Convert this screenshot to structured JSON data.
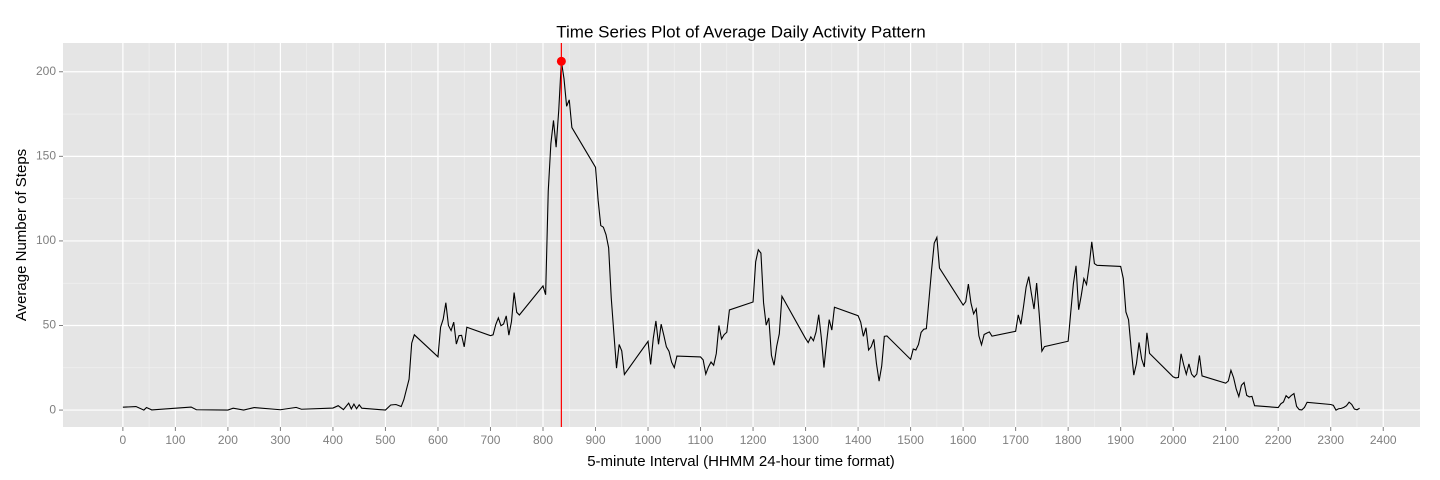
{
  "chart_data": {
    "type": "line",
    "title": "Time Series Plot of Average Daily Activity Pattern",
    "x_label": "5-minute Interval (HHMM 24-hour time format)",
    "y_label": "Average Number of Steps",
    "xlim": [
      -114,
      2470
    ],
    "ylim": [
      -10,
      217
    ],
    "xticks": [
      0,
      100,
      200,
      300,
      400,
      500,
      600,
      700,
      800,
      900,
      1000,
      1100,
      1200,
      1300,
      1400,
      1500,
      1600,
      1700,
      1800,
      1900,
      2000,
      2100,
      2200,
      2300,
      2400
    ],
    "yticks": [
      0,
      50,
      100,
      150,
      200
    ],
    "grid": true,
    "x": [
      0,
      25,
      40,
      45,
      55,
      130,
      140,
      200,
      210,
      230,
      250,
      300,
      330,
      340,
      400,
      410,
      420,
      430,
      435,
      440,
      445,
      450,
      455,
      500,
      510,
      520,
      530,
      535,
      545,
      550,
      555,
      600,
      605,
      610,
      615,
      620,
      625,
      630,
      635,
      640,
      645,
      650,
      655,
      700,
      705,
      710,
      715,
      720,
      725,
      730,
      735,
      740,
      745,
      750,
      755,
      800,
      805,
      810,
      815,
      820,
      825,
      830,
      835,
      840,
      845,
      850,
      855,
      900,
      905,
      910,
      915,
      920,
      925,
      930,
      935,
      940,
      945,
      950,
      955,
      1000,
      1005,
      1010,
      1015,
      1020,
      1025,
      1030,
      1035,
      1040,
      1045,
      1050,
      1055,
      1100,
      1105,
      1110,
      1115,
      1120,
      1125,
      1130,
      1135,
      1140,
      1145,
      1150,
      1155,
      1200,
      1205,
      1210,
      1215,
      1220,
      1225,
      1230,
      1235,
      1240,
      1245,
      1250,
      1255,
      1300,
      1305,
      1310,
      1315,
      1320,
      1325,
      1330,
      1335,
      1340,
      1345,
      1350,
      1355,
      1400,
      1405,
      1410,
      1415,
      1420,
      1425,
      1430,
      1435,
      1440,
      1445,
      1450,
      1455,
      1500,
      1505,
      1510,
      1515,
      1520,
      1525,
      1530,
      1535,
      1540,
      1545,
      1550,
      1555,
      1600,
      1605,
      1610,
      1615,
      1620,
      1625,
      1630,
      1635,
      1640,
      1645,
      1650,
      1655,
      1700,
      1705,
      1710,
      1715,
      1720,
      1725,
      1730,
      1735,
      1740,
      1745,
      1750,
      1755,
      1800,
      1805,
      1810,
      1815,
      1820,
      1825,
      1830,
      1835,
      1840,
      1845,
      1850,
      1855,
      1900,
      1905,
      1910,
      1915,
      1920,
      1925,
      1930,
      1935,
      1940,
      1945,
      1950,
      1955,
      2000,
      2005,
      2010,
      2015,
      2020,
      2025,
      2030,
      2035,
      2040,
      2045,
      2050,
      2055,
      2100,
      2105,
      2110,
      2115,
      2120,
      2125,
      2130,
      2135,
      2140,
      2145,
      2150,
      2155,
      2200,
      2205,
      2210,
      2215,
      2220,
      2225,
      2230,
      2235,
      2240,
      2245,
      2250,
      2255,
      2300,
      2305,
      2310,
      2315,
      2320,
      2325,
      2330,
      2335,
      2340,
      2345,
      2350,
      2355
    ],
    "series": [
      {
        "color": "#000000",
        "values": [
          1.7,
          2.1,
          0,
          1.5,
          0.1,
          1.8,
          0.2,
          0,
          1.1,
          0,
          1.5,
          0.2,
          1.6,
          0.5,
          1.2,
          2.6,
          0.3,
          4.1,
          0.7,
          3.5,
          0.8,
          3.1,
          1.1,
          0,
          3.0,
          3.3,
          2.1,
          6.1,
          18.3,
          39.5,
          44.5,
          31.5,
          49,
          53.8,
          63.5,
          50,
          47,
          52,
          39,
          44,
          44.2,
          37.4,
          49,
          44,
          44.5,
          50.5,
          54.5,
          49.9,
          50.9,
          55.7,
          44.3,
          52.3,
          69.5,
          57.8,
          56.2,
          73.4,
          68.2,
          129.4,
          157.5,
          171.2,
          155.4,
          177.3,
          206.2,
          195.9,
          179.6,
          183.4,
          167,
          143.5,
          124,
          109.1,
          108.1,
          103.7,
          95.97,
          66.2,
          45.2,
          24.8,
          38.8,
          34.98,
          21.06,
          40.6,
          26.98,
          42.4,
          52.7,
          38.9,
          50.8,
          44.3,
          37.4,
          34.7,
          28.3,
          25.1,
          31.9,
          31.4,
          29.7,
          21.3,
          25.5,
          28.4,
          26.5,
          33.4,
          49.98,
          42,
          44.6,
          46,
          59.2,
          63.9,
          87.7,
          94.8,
          92.8,
          63.4,
          50.2,
          54.5,
          32.4,
          26.5,
          37.7,
          45.1,
          67.3,
          42.3,
          39.9,
          43.3,
          40.98,
          46.2,
          56.4,
          42.8,
          25.1,
          39.97,
          53.5,
          47.3,
          60.8,
          55.8,
          51.96,
          43.6,
          48.7,
          35.5,
          37.5,
          41.8,
          27.5,
          17.1,
          26.1,
          43.6,
          43.8,
          30,
          36.1,
          35.5,
          38.8,
          45.96,
          47.8,
          48.1,
          65.3,
          82.9,
          98.7,
          102.1,
          83.96,
          62.1,
          64.1,
          74.5,
          63.2,
          56.9,
          59.8,
          43.9,
          38.6,
          44.7,
          45.5,
          46.2,
          43.7,
          46.6,
          56.3,
          50.7,
          61.2,
          72.7,
          78.9,
          68.9,
          59.7,
          75.1,
          56.5,
          34.8,
          37.5,
          40.7,
          58,
          74.7,
          85.3,
          59.3,
          67.8,
          77.7,
          74.2,
          85.3,
          99.5,
          86.6,
          85.6,
          84.9,
          77.8,
          58,
          53.4,
          36.3,
          20.7,
          27.4,
          40,
          30.2,
          25.5,
          45.7,
          33.5,
          19.6,
          19,
          19.3,
          33.3,
          26.8,
          21.2,
          27.3,
          21.3,
          19.5,
          21.3,
          32.3,
          20.2,
          15.9,
          17.2,
          23.5,
          19.2,
          12.5,
          8,
          14.7,
          16.3,
          8.7,
          7.8,
          8.1,
          2.6,
          1.5,
          3.7,
          4.8,
          8.5,
          7.1,
          8.7,
          9.8,
          2.2,
          0.3,
          0.1,
          1.6,
          4.6,
          3.3,
          2.8,
          0,
          0.8,
          1,
          1.6,
          2.6,
          4.7,
          3.3,
          0.6,
          0.2,
          1.1
        ]
      }
    ],
    "highlight": {
      "x": 835,
      "y": 206.2,
      "color": "#ff0000"
    }
  }
}
